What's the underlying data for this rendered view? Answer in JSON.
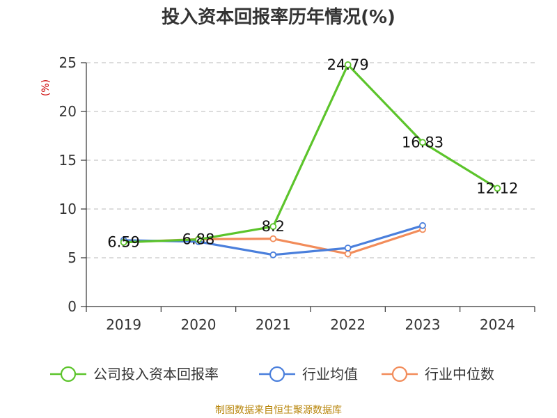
{
  "chart_data": {
    "type": "line",
    "title": "投入资本回报率历年情况(%)",
    "ylabel": "(%)",
    "categories": [
      "2019",
      "2020",
      "2021",
      "2022",
      "2023",
      "2024"
    ],
    "y_ticks": [
      "0",
      "5",
      "10",
      "15",
      "20",
      "25"
    ],
    "ylim": [
      0,
      25
    ],
    "grid": "horizontal dashed",
    "legend_position": "bottom",
    "series": [
      {
        "name": "公司投入资本回报率",
        "color": "#5cc42b",
        "values": [
          6.59,
          6.88,
          8.2,
          24.79,
          16.83,
          12.12
        ],
        "labels": [
          "6.59",
          "6.88",
          "8.2",
          "24.79",
          "16.83",
          "12.12"
        ]
      },
      {
        "name": "行业均值",
        "color": "#4a7fdc",
        "values": [
          6.8,
          6.65,
          5.3,
          6.0,
          8.3,
          null
        ]
      },
      {
        "name": "行业中位数",
        "color": "#f28c5a",
        "values": [
          6.6,
          6.9,
          6.95,
          5.4,
          7.9,
          null
        ]
      }
    ],
    "source": "制图数据来自恒生聚源数据库"
  }
}
